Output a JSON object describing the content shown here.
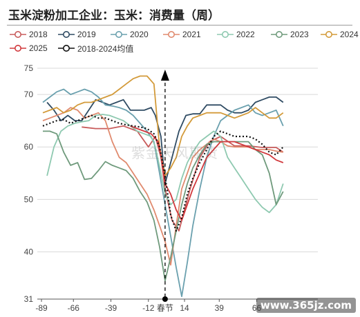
{
  "title": "玉米淀粉加工企业：玉米：消费量（周）",
  "watermark": "紫金天风期货",
  "site_mark": "www.365jz.com",
  "chart_data": {
    "type": "line",
    "xlabel": "",
    "ylabel": "",
    "xlim": [
      -92,
      110
    ],
    "ylim": [
      31,
      75
    ],
    "yticks": [
      31,
      40,
      50,
      60,
      70,
      75
    ],
    "xticks": [
      {
        "v": -89,
        "label": "-89"
      },
      {
        "v": -66,
        "label": "-66"
      },
      {
        "v": -39,
        "label": "-39"
      },
      {
        "v": -12,
        "label": "-12"
      },
      {
        "v": 0,
        "label": "春节"
      },
      {
        "v": 14,
        "label": "14"
      },
      {
        "v": 39,
        "label": "39"
      },
      {
        "v": 66,
        "label": "66"
      }
    ],
    "grid": true,
    "marker_line_x": 0,
    "series": [
      {
        "name": "2018",
        "color": "#c85b5b",
        "style": "solid",
        "x": [
          -60,
          -50,
          -40,
          -30,
          -20,
          -12,
          -7,
          -3,
          0,
          5,
          10,
          18,
          25,
          32,
          40,
          50,
          60,
          70,
          80,
          85
        ],
        "y": [
          63.8,
          63.5,
          63.5,
          64.0,
          63.0,
          60.0,
          62.0,
          58.0,
          52.0,
          46.0,
          44.0,
          52.0,
          58.0,
          61.0,
          62.0,
          60.2,
          60.2,
          59.9,
          59.9,
          59.0
        ]
      },
      {
        "name": "2019",
        "color": "#2f4b63",
        "style": "solid",
        "x": [
          -85,
          -80,
          -75,
          -70,
          -65,
          -60,
          -55,
          -50,
          -45,
          -40,
          -35,
          -30,
          -25,
          -20,
          -15,
          -10,
          -7,
          -3,
          0,
          5,
          10,
          15,
          20,
          25,
          30,
          35,
          40,
          45,
          50,
          55,
          60,
          65,
          70,
          75,
          80,
          85
        ],
        "y": [
          68.5,
          67.0,
          65.0,
          66.0,
          65.0,
          65.0,
          67.0,
          69.0,
          68.5,
          68.0,
          68.5,
          69.0,
          67.0,
          67.0,
          67.0,
          67.5,
          66.0,
          62.0,
          53.0,
          58.0,
          63.0,
          66.0,
          66.3,
          66.3,
          68.0,
          68.0,
          68.0,
          67.0,
          66.5,
          66.5,
          67.0,
          68.5,
          69.0,
          69.5,
          69.5,
          68.5
        ]
      },
      {
        "name": "2020",
        "color": "#6aa0ae",
        "style": "solid",
        "x": [
          -88,
          -83,
          -78,
          -73,
          -68,
          -63,
          -58,
          -53,
          -48,
          -43,
          -38,
          -33,
          -28,
          -23,
          -18,
          -13,
          -8,
          -4,
          0,
          4,
          8,
          12,
          16,
          20,
          25,
          30,
          35,
          40,
          45,
          50,
          55,
          60,
          65,
          70,
          75,
          80,
          85
        ],
        "y": [
          68.5,
          69.5,
          70.5,
          71.0,
          70.0,
          70.5,
          71.0,
          70.5,
          69.5,
          68.0,
          67.8,
          67.5,
          67.0,
          66.0,
          64.5,
          63.0,
          61.0,
          55.0,
          49.0,
          43.0,
          37.0,
          31.5,
          38.0,
          45.0,
          52.0,
          58.0,
          62.0,
          65.0,
          66.0,
          67.0,
          67.5,
          68.0,
          66.5,
          66.0,
          66.5,
          67.0,
          64.0
        ]
      },
      {
        "name": "2021",
        "color": "#e08a6e",
        "style": "solid",
        "x": [
          -88,
          -83,
          -78,
          -73,
          -68,
          -63,
          -58,
          -53,
          -48,
          -43,
          -38,
          -33,
          -28,
          -23,
          -18,
          -13,
          -8,
          -4,
          0,
          4,
          8,
          12,
          16,
          20,
          25,
          30,
          35,
          40,
          45,
          50,
          55,
          60,
          65,
          70,
          75,
          80,
          85
        ],
        "y": [
          65.0,
          65.5,
          66.0,
          66.5,
          67.5,
          67.0,
          65.5,
          66.0,
          66.5,
          65.0,
          61.0,
          58.0,
          57.0,
          55.0,
          53.0,
          51.0,
          48.0,
          45.0,
          42.0,
          37.5,
          45.0,
          52.0,
          55.0,
          58.0,
          59.5,
          60.5,
          61.5,
          61.0,
          60.2,
          60.0,
          60.0,
          60.0,
          59.5,
          59.5,
          59.5,
          59.2,
          59.0
        ]
      },
      {
        "name": "2022",
        "color": "#8ec9b0",
        "style": "solid",
        "x": [
          -85,
          -80,
          -75,
          -70,
          -65,
          -60,
          -55,
          -50,
          -45,
          -40,
          -35,
          -30,
          -25,
          -20,
          -15,
          -10,
          -7,
          -3,
          0,
          4,
          8,
          12,
          16,
          20,
          25,
          30,
          35,
          40,
          45,
          50,
          55,
          60,
          65,
          70,
          75,
          80,
          85
        ],
        "y": [
          54.5,
          60.0,
          63.0,
          64.0,
          64.5,
          64.8,
          65.0,
          66.0,
          66.2,
          66.0,
          65.5,
          65.0,
          64.0,
          63.0,
          62.5,
          62.0,
          60.0,
          55.0,
          51.0,
          49.0,
          50.0,
          54.0,
          57.0,
          59.0,
          61.0,
          62.0,
          63.0,
          62.0,
          58.0,
          56.0,
          54.0,
          52.0,
          50.0,
          48.5,
          47.5,
          49.0,
          53.0
        ]
      },
      {
        "name": "2023",
        "color": "#6f9a7c",
        "style": "solid",
        "x": [
          -88,
          -83,
          -78,
          -73,
          -68,
          -63,
          -58,
          -53,
          -48,
          -43,
          -38,
          -33,
          -28,
          -23,
          -18,
          -13,
          -8,
          -4,
          0,
          4,
          8,
          12,
          16,
          20,
          25,
          30,
          35,
          40,
          45,
          50,
          55,
          60,
          65,
          70,
          75,
          80,
          85
        ],
        "y": [
          63.0,
          63.0,
          62.5,
          59.0,
          56.5,
          57.0,
          53.8,
          54.0,
          55.5,
          57.2,
          56.5,
          56.0,
          55.5,
          54.0,
          51.5,
          49.5,
          46.0,
          41.0,
          34.5,
          39.0,
          44.0,
          49.0,
          53.0,
          56.0,
          58.5,
          60.5,
          61.0,
          61.0,
          61.0,
          61.0,
          61.0,
          61.0,
          59.5,
          58.5,
          55.0,
          49.0,
          51.5
        ]
      },
      {
        "name": "2024",
        "color": "#d39a39",
        "style": "solid",
        "x": [
          -88,
          -83,
          -78,
          -73,
          -68,
          -63,
          -58,
          -53,
          -48,
          -43,
          -38,
          -33,
          -28,
          -23,
          -18,
          -13,
          -8,
          -4,
          0,
          4,
          8,
          12,
          16,
          20,
          25,
          30,
          35,
          40,
          45,
          50,
          55,
          60,
          65,
          70,
          75,
          80,
          85
        ],
        "y": [
          66.5,
          67.0,
          67.5,
          66.5,
          67.0,
          68.0,
          68.5,
          68.5,
          69.0,
          69.5,
          70.0,
          71.0,
          72.0,
          73.0,
          73.5,
          73.5,
          72.0,
          60.0,
          54.5,
          56.0,
          58.0,
          62.0,
          64.0,
          65.5,
          66.0,
          66.5,
          66.5,
          66.5,
          66.0,
          65.5,
          66.0,
          66.5,
          67.5,
          66.5,
          65.5,
          65.5,
          66.5
        ]
      },
      {
        "name": "2025",
        "color": "#d1383c",
        "style": "solid",
        "x": [
          -25,
          -20,
          -15,
          -10,
          -5,
          -2,
          0,
          4,
          8,
          12,
          20,
          30,
          40,
          50,
          60,
          65,
          70,
          75,
          80,
          85
        ],
        "y": [
          64.0,
          63.5,
          63.0,
          62.5,
          61.0,
          57.0,
          53.0,
          51.0,
          48.0,
          46.0,
          52.0,
          58.0,
          61.0,
          61.0,
          60.0,
          59.5,
          59.0,
          58.5,
          57.5,
          57.0
        ]
      },
      {
        "name": "2018-2024均值",
        "color": "#111111",
        "style": "dotted",
        "x": [
          -88,
          -83,
          -78,
          -73,
          -68,
          -63,
          -58,
          -53,
          -48,
          -43,
          -38,
          -33,
          -28,
          -23,
          -18,
          -13,
          -8,
          -4,
          0,
          4,
          8,
          12,
          16,
          20,
          25,
          30,
          35,
          40,
          45,
          50,
          55,
          60,
          65,
          70,
          75,
          80,
          85
        ],
        "y": [
          64.0,
          64.5,
          65.0,
          65.2,
          64.5,
          65.0,
          65.5,
          66.0,
          65.5,
          65.5,
          65.0,
          64.5,
          64.2,
          64.0,
          63.8,
          63.5,
          62.5,
          60.0,
          54.5,
          47.0,
          44.0,
          46.5,
          51.0,
          54.0,
          57.0,
          59.5,
          62.0,
          63.0,
          62.5,
          62.0,
          62.0,
          62.0,
          61.5,
          60.5,
          59.0,
          58.5,
          60.0
        ]
      }
    ]
  }
}
